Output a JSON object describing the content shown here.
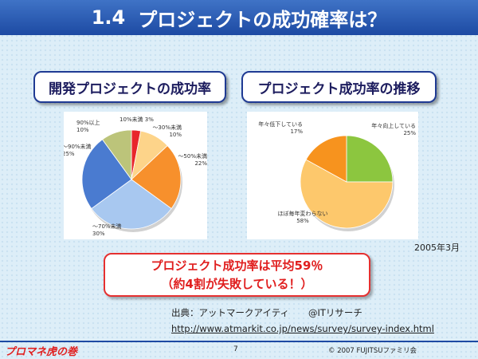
{
  "slide": {
    "number_label": "1.4",
    "title": "プロジェクトの成功確率は？",
    "date": "2005年3月",
    "highlight_line1": "プロジェクト成功率は平均59％",
    "highlight_line2": "（約4割が失敗している！）",
    "source_prefix": "出典：アットマークアイティ",
    "source_org": "@ITリサーチ",
    "url": "http://www.atmarkit.co.jp/news/survey/survey-index.html",
    "logo": "プロマネ虎の巻",
    "page_number": "7",
    "copyright": "© 2007 FUJITSUファミリ会"
  },
  "chart_data": [
    {
      "type": "pie",
      "title": "開発プロジェクトの成功率",
      "slices": [
        {
          "label": "10%未満",
          "value": 3,
          "value_label": "3%",
          "color": "#e8262b"
        },
        {
          "label": "～30%未満",
          "value": 10,
          "value_label": "10%",
          "color": "#fdd48a"
        },
        {
          "label": "～50%未満",
          "value": 22,
          "value_label": "22%",
          "color": "#f7902c"
        },
        {
          "label": "～70%未満",
          "value": 30,
          "value_label": "30%",
          "color": "#a8c8f0"
        },
        {
          "label": "～90%未満",
          "value": 25,
          "value_label": "25%",
          "color": "#4a7bd0"
        },
        {
          "label": "90%以上",
          "value": 10,
          "value_label": "10%",
          "color": "#bcc47a"
        }
      ]
    },
    {
      "type": "pie",
      "title": "プロジェクト成功率の推移",
      "slices": [
        {
          "label": "年々向上している",
          "value": 25,
          "value_label": "25%",
          "color": "#8cc63f"
        },
        {
          "label": "ほぼ毎年変わらない",
          "value": 58,
          "value_label": "58%",
          "color": "#fdc86c"
        },
        {
          "label": "年々低下している",
          "value": 17,
          "value_label": "17%",
          "color": "#f7931e"
        }
      ]
    }
  ]
}
